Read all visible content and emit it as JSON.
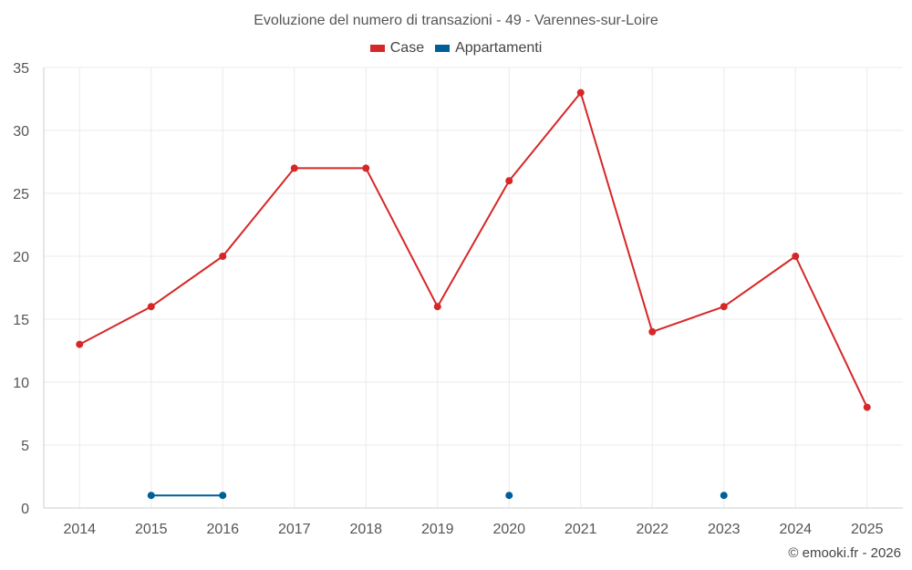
{
  "chart_data": {
    "type": "line",
    "title": "Evoluzione del numero di transazioni - 49 - Varennes-sur-Loire",
    "categories": [
      "2014",
      "2015",
      "2016",
      "2017",
      "2018",
      "2019",
      "2020",
      "2021",
      "2022",
      "2023",
      "2024",
      "2025"
    ],
    "series": [
      {
        "name": "Case",
        "color": "#d62728",
        "values": [
          13,
          16,
          20,
          27,
          27,
          16,
          26,
          33,
          14,
          16,
          20,
          8
        ]
      },
      {
        "name": "Appartamenti",
        "color": "#005f99",
        "values": [
          null,
          1,
          1,
          null,
          null,
          null,
          1,
          null,
          null,
          1,
          null,
          null
        ]
      }
    ],
    "yticks": [
      "0",
      "5",
      "10",
      "15",
      "20",
      "25",
      "30",
      "35"
    ],
    "ylim": [
      0,
      35
    ],
    "grid": true,
    "legend": "top-center"
  },
  "credit": "© emooki.fr - 2026"
}
